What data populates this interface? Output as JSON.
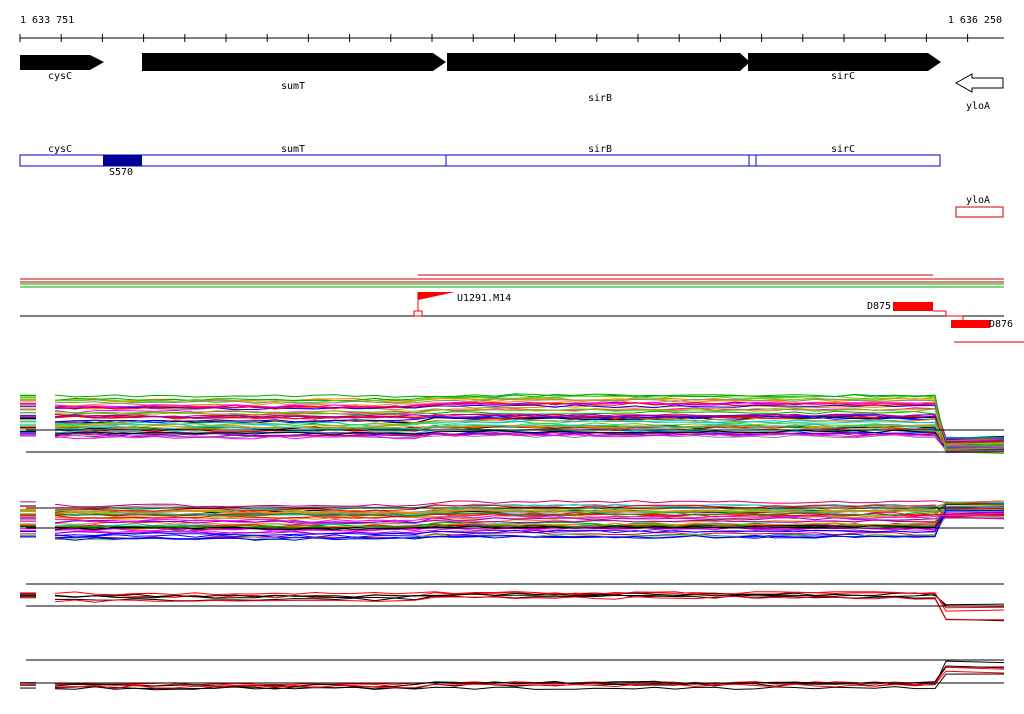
{
  "ruler": {
    "start": "1 633 751",
    "end": "1 636 250"
  },
  "genes": [
    {
      "label": "cysC"
    },
    {
      "label": "sumT"
    },
    {
      "label": "sirB"
    },
    {
      "label": "sirC"
    },
    {
      "label": "yloA"
    }
  ],
  "transcripts": [
    {
      "label": "cysC"
    },
    {
      "label": "sumT"
    },
    {
      "label": "sirB"
    },
    {
      "label": "sirC"
    },
    {
      "label": "yloA"
    }
  ],
  "features": [
    {
      "label": "S570"
    },
    {
      "label": "U1291.M14"
    },
    {
      "label": "D875"
    },
    {
      "label": "D876"
    }
  ]
}
